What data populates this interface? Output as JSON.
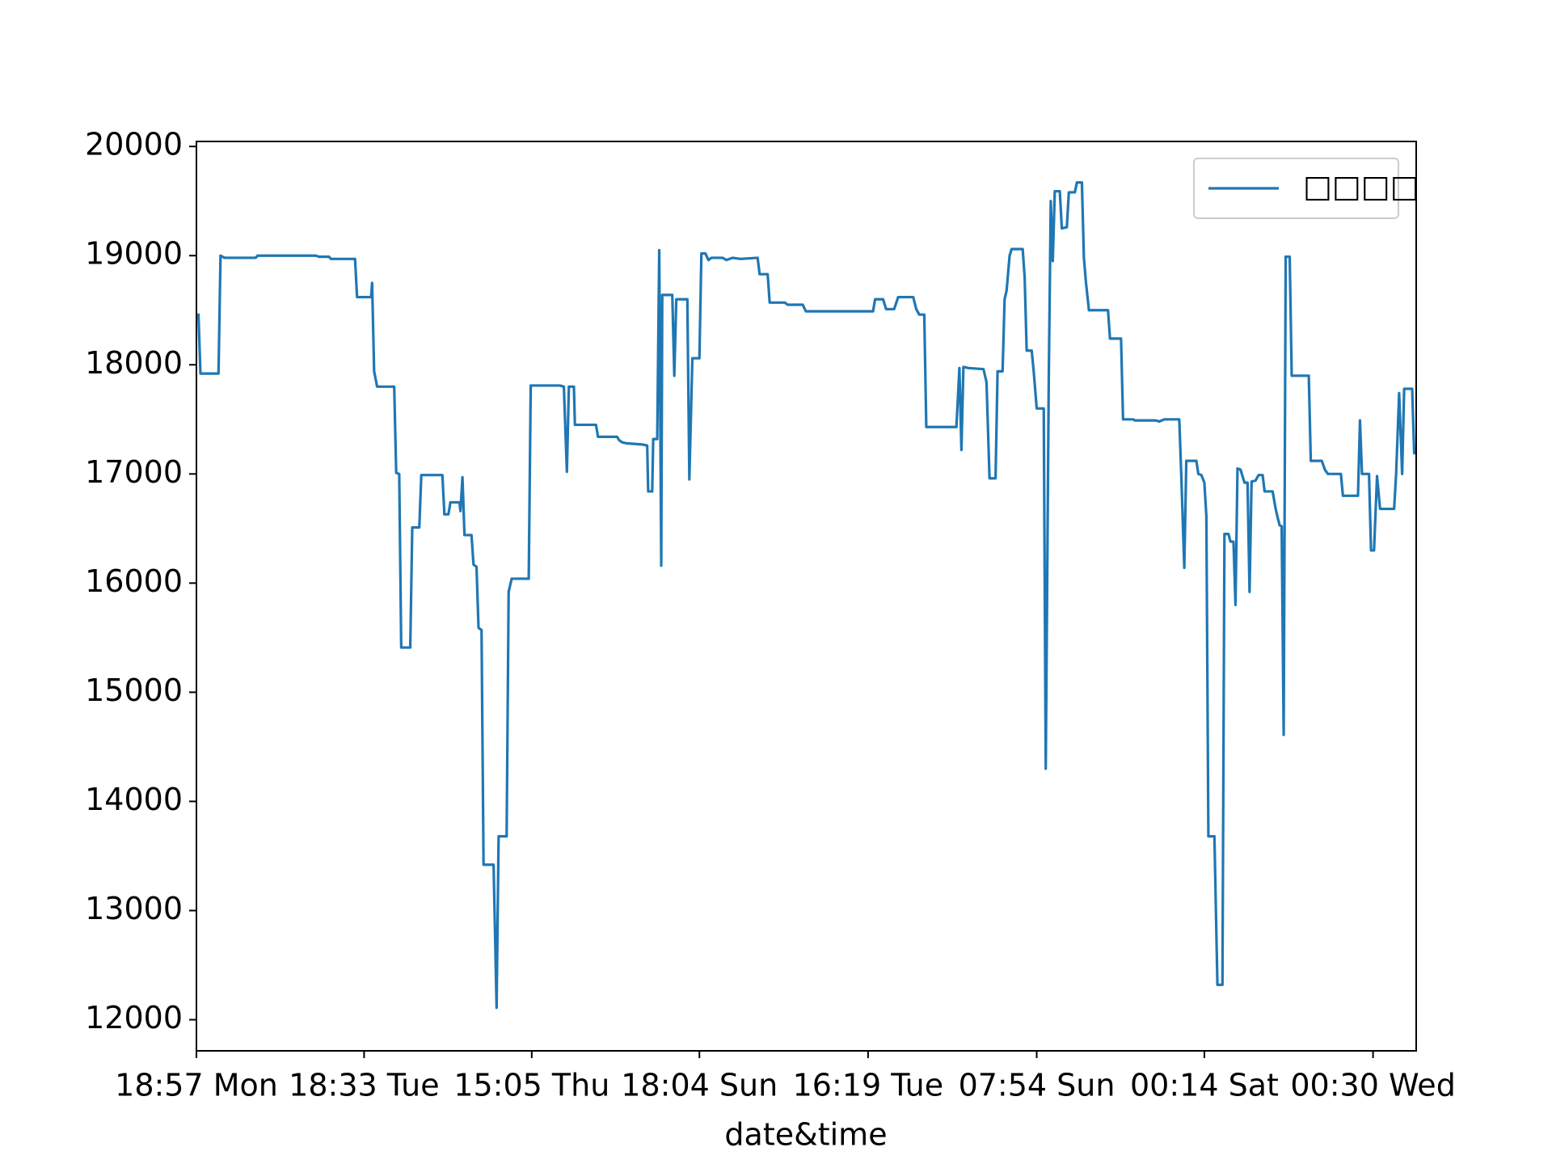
{
  "chart_data": {
    "type": "line",
    "x_label": "date&time",
    "x": [
      2,
      4,
      22,
      24,
      28,
      59,
      61,
      119,
      122,
      132,
      134,
      158,
      160,
      174,
      175,
      177,
      180,
      197,
      199,
      202,
      204,
      213,
      215,
      222,
      224,
      245,
      247,
      251,
      253,
      262,
      263,
      265,
      267,
      274,
      276,
      279,
      281,
      284,
      286,
      296,
      299,
      301,
      309,
      311,
      314,
      331,
      333,
      362,
      366,
      369,
      371,
      376,
      377,
      398,
      400,
      419,
      421,
      424,
      429,
      444,
      449,
      450,
      454,
      455,
      459,
      461,
      463,
      464,
      474,
      476,
      478,
      489,
      491,
      494,
      501,
      503,
      507,
      510,
      513,
      524,
      528,
      534,
      542,
      559,
      561,
      569,
      571,
      586,
      589,
      604,
      607,
      674,
      676,
      684,
      687,
      695,
      699,
      714,
      717,
      720,
      725,
      727,
      757,
      760,
      762,
      764,
      769,
      784,
      787,
      790,
      796,
      798,
      803,
      805,
      807,
      810,
      812,
      823,
      825,
      827,
      832,
      834,
      837,
      844,
      846,
      849,
      851,
      853,
      855,
      860,
      862,
      867,
      869,
      875,
      877,
      882,
      884,
      886,
      889,
      908,
      910,
      921,
      923,
      933,
      935,
      956,
      959,
      964,
      979,
      981,
      984,
      986,
      996,
      998,
      1001,
      1004,
      1006,
      1008,
      1014,
      1017,
      1022,
      1024,
      1028,
      1030,
      1033,
      1035,
      1037,
      1040,
      1044,
      1047,
      1049,
      1051,
      1055,
      1058,
      1062,
      1064,
      1072,
      1075,
      1077,
      1079,
      1081,
      1083,
      1085,
      1089,
      1091,
      1094,
      1108,
      1110,
      1121,
      1124,
      1127,
      1140,
      1142,
      1157,
      1159,
      1161,
      1168,
      1170,
      1173,
      1176,
      1179,
      1193,
      1195,
      1198,
      1201,
      1203,
      1211,
      1213,
      1215
    ],
    "series": [
      {
        "name": "□□□□",
        "color": "#1f77b4",
        "values": [
          18470,
          17920,
          17920,
          19000,
          18980,
          18980,
          19000,
          19000,
          18990,
          18990,
          18970,
          18970,
          18620,
          18620,
          18750,
          17940,
          17800,
          17800,
          17010,
          17000,
          15410,
          15410,
          16510,
          16510,
          16990,
          16990,
          16630,
          16630,
          16740,
          16740,
          16660,
          16970,
          16440,
          16440,
          16170,
          16150,
          15590,
          15570,
          13420,
          13420,
          12110,
          13680,
          13680,
          15920,
          16040,
          16040,
          17810,
          17810,
          17800,
          17020,
          17800,
          17800,
          17450,
          17450,
          17340,
          17340,
          17310,
          17290,
          17280,
          17270,
          17260,
          16840,
          16840,
          17320,
          17320,
          19050,
          16160,
          18640,
          18640,
          17900,
          18600,
          18600,
          16950,
          18060,
          18060,
          19020,
          19020,
          18960,
          18980,
          18980,
          18960,
          18980,
          18970,
          18980,
          18830,
          18830,
          18570,
          18570,
          18550,
          18550,
          18490,
          18490,
          18600,
          18600,
          18510,
          18510,
          18620,
          18620,
          18510,
          18460,
          18460,
          17430,
          17430,
          17970,
          17220,
          17980,
          17970,
          17960,
          17840,
          16960,
          16960,
          17940,
          17940,
          18600,
          18680,
          19000,
          19060,
          19060,
          18800,
          18130,
          18130,
          17940,
          17600,
          17600,
          14300,
          17870,
          19500,
          18950,
          19590,
          19590,
          19250,
          19260,
          19580,
          19580,
          19670,
          19670,
          18980,
          18760,
          18500,
          18500,
          18240,
          18240,
          17500,
          17500,
          17490,
          17490,
          17480,
          17500,
          17500,
          16990,
          16140,
          17120,
          17120,
          17000,
          16990,
          16920,
          16610,
          13680,
          13680,
          12320,
          12320,
          16450,
          16450,
          16380,
          16380,
          15800,
          17050,
          17040,
          16920,
          16920,
          15920,
          16930,
          16940,
          16990,
          16990,
          16840,
          16840,
          16680,
          16600,
          16530,
          16520,
          14610,
          18990,
          18990,
          17900,
          17900,
          17900,
          17120,
          17120,
          17040,
          17000,
          17000,
          16800,
          16800,
          17490,
          17000,
          17000,
          16300,
          16300,
          16980,
          16680,
          16680,
          17000,
          17740,
          17000,
          17780,
          17780,
          17190,
          17190
        ]
      }
    ],
    "xlim": [
      0,
      1215
    ],
    "xticks": [
      {
        "value": 0,
        "label": "18:57 Mon"
      },
      {
        "value": 167,
        "label": "18:33 Tue"
      },
      {
        "value": 334,
        "label": "15:05 Thu"
      },
      {
        "value": 501,
        "label": "18:04 Sun"
      },
      {
        "value": 669,
        "label": "16:19 Tue"
      },
      {
        "value": 837,
        "label": "07:54 Sun"
      },
      {
        "value": 1004,
        "label": "00:14 Sat"
      },
      {
        "value": 1172,
        "label": "00:30 Wed"
      }
    ],
    "ylim": [
      11715,
      20046
    ],
    "yticks": [
      12000,
      13000,
      14000,
      15000,
      16000,
      17000,
      18000,
      19000,
      20000
    ],
    "legend": "upper right",
    "grid": false
  }
}
